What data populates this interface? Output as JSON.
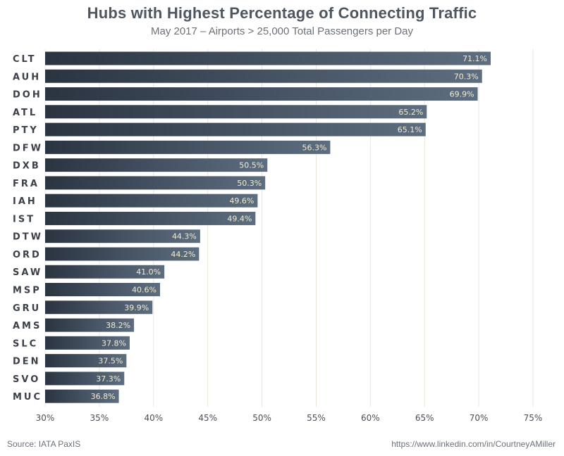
{
  "chart_data": {
    "type": "bar",
    "orientation": "horizontal",
    "title": "Hubs with Highest Percentage of Connecting Traffic",
    "subtitle": "May 2017 – Airports > 25,000 Total Passengers per Day",
    "categories": [
      "CLT",
      "AUH",
      "DOH",
      "ATL",
      "PTY",
      "DFW",
      "DXB",
      "FRA",
      "IAH",
      "IST",
      "DTW",
      "ORD",
      "SAW",
      "MSP",
      "GRU",
      "AMS",
      "SLC",
      "DEN",
      "SVO",
      "MUC"
    ],
    "values": [
      71.1,
      70.3,
      69.9,
      65.2,
      65.1,
      56.3,
      50.5,
      50.3,
      49.6,
      49.4,
      44.3,
      44.2,
      41.0,
      40.6,
      39.9,
      38.2,
      37.8,
      37.5,
      37.3,
      36.8
    ],
    "value_labels": [
      "71.1%",
      "70.3%",
      "69.9%",
      "65.2%",
      "65.1%",
      "56.3%",
      "50.5%",
      "50.3%",
      "49.6%",
      "49.4%",
      "44.3%",
      "44.2%",
      "41.0%",
      "40.6%",
      "39.9%",
      "38.2%",
      "37.8%",
      "37.5%",
      "37.3%",
      "36.8%"
    ],
    "xlim": [
      30,
      75
    ],
    "xticks": [
      30,
      35,
      40,
      45,
      50,
      55,
      60,
      65,
      70,
      75
    ],
    "xtick_labels": [
      "30%",
      "35%",
      "40%",
      "45%",
      "50%",
      "55%",
      "60%",
      "65%",
      "70%",
      "75%"
    ],
    "xlabel": "",
    "ylabel": "",
    "grid": "vertical",
    "legend": "none",
    "colors": {
      "bar_start": "#2b3441",
      "bar_end": "#5d6e80",
      "grid": "#ece6d8",
      "tick_text": "#4a4f57",
      "category_text": "#3b4049",
      "value_text": "#f3ecd2"
    }
  },
  "footer": {
    "source": "Source: IATA PaxIS",
    "credit": "https://www.linkedin.com/in/CourtneyAMiller"
  }
}
